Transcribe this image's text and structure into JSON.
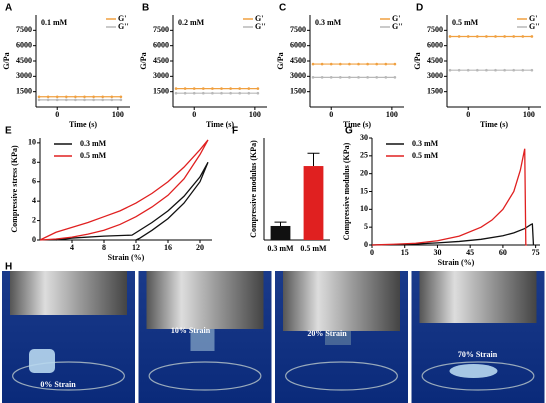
{
  "chart_data": [
    {
      "type": "line",
      "label": "A",
      "title": "0.1 mM",
      "xlabel": "Time (s)",
      "ylabel": "G/Pa",
      "markers": true,
      "legend": "top-right",
      "x": [
        -30,
        -15,
        0,
        15,
        30,
        45,
        60,
        75,
        90,
        105
      ],
      "xlim": [
        -35,
        120
      ],
      "xticks": [
        0,
        100
      ],
      "ylim": [
        0,
        9000
      ],
      "yticks": [
        1500,
        3000,
        4500,
        6000,
        7500
      ],
      "series": [
        {
          "name": "G'",
          "color": "#f0a040",
          "values": [
            1000,
            1000,
            1000,
            1000,
            1000,
            1000,
            1000,
            1000,
            1000,
            1000
          ]
        },
        {
          "name": "G''",
          "color": "#b8b8b8",
          "values": [
            700,
            700,
            700,
            700,
            700,
            700,
            700,
            700,
            700,
            700
          ]
        }
      ]
    },
    {
      "type": "line",
      "label": "B",
      "title": "0.2 mM",
      "xlabel": "Time (s)",
      "ylabel": "G/Pa",
      "markers": true,
      "legend": "top-right",
      "x": [
        -30,
        -15,
        0,
        15,
        30,
        45,
        60,
        75,
        90,
        105
      ],
      "xlim": [
        -35,
        120
      ],
      "xticks": [
        0,
        100
      ],
      "ylim": [
        0,
        9000
      ],
      "yticks": [
        1500,
        3000,
        4500,
        6000,
        7500
      ],
      "series": [
        {
          "name": "G'",
          "color": "#f0a040",
          "values": [
            1800,
            1800,
            1800,
            1800,
            1800,
            1800,
            1800,
            1800,
            1800,
            1800
          ]
        },
        {
          "name": "G''",
          "color": "#b8b8b8",
          "values": [
            1350,
            1350,
            1350,
            1350,
            1350,
            1350,
            1350,
            1350,
            1350,
            1350
          ]
        }
      ]
    },
    {
      "type": "line",
      "label": "C",
      "title": "0.3 mM",
      "xlabel": "Time (s)",
      "ylabel": "G/Pa",
      "markers": true,
      "legend": "top-right",
      "x": [
        -30,
        -15,
        0,
        15,
        30,
        45,
        60,
        75,
        90,
        105
      ],
      "xlim": [
        -35,
        120
      ],
      "xticks": [
        0,
        100
      ],
      "ylim": [
        0,
        9000
      ],
      "yticks": [
        1500,
        3000,
        4500,
        6000,
        7500
      ],
      "series": [
        {
          "name": "G'",
          "color": "#f0a040",
          "values": [
            4200,
            4200,
            4200,
            4200,
            4200,
            4200,
            4200,
            4200,
            4200,
            4200
          ]
        },
        {
          "name": "G''",
          "color": "#b8b8b8",
          "values": [
            2900,
            2900,
            2900,
            2900,
            2900,
            2900,
            2900,
            2900,
            2900,
            2900
          ]
        }
      ]
    },
    {
      "type": "line",
      "label": "D",
      "title": "0.5 mM",
      "xlabel": "Time (s)",
      "ylabel": "G/Pa",
      "markers": true,
      "legend": "top-right",
      "x": [
        -30,
        -15,
        0,
        15,
        30,
        45,
        60,
        75,
        90,
        105
      ],
      "xlim": [
        -35,
        120
      ],
      "xticks": [
        0,
        100
      ],
      "ylim": [
        0,
        9000
      ],
      "yticks": [
        1500,
        3000,
        4500,
        6000,
        7500
      ],
      "series": [
        {
          "name": "G'",
          "color": "#f0a040",
          "values": [
            6900,
            6900,
            6900,
            6900,
            6900,
            6900,
            6900,
            6900,
            6900,
            6900
          ]
        },
        {
          "name": "G''",
          "color": "#b8b8b8",
          "values": [
            3600,
            3600,
            3600,
            3600,
            3600,
            3600,
            3600,
            3600,
            3600,
            3600
          ]
        }
      ]
    },
    {
      "type": "line",
      "label": "E",
      "xlabel": "Strain (%)",
      "ylabel": "Compressive stress (KPa)",
      "markers": false,
      "legend": "top-left",
      "xlim": [
        0,
        21.5
      ],
      "xticks": [
        4,
        8,
        12,
        16,
        20
      ],
      "ylim": [
        0,
        10.5
      ],
      "yticks": [
        0,
        2,
        4,
        6,
        8,
        10
      ],
      "series": [
        {
          "name": "0.3 mM",
          "color": "#111111",
          "x": [
            2,
            4,
            8,
            11.5,
            14,
            16,
            18,
            20,
            21,
            20,
            18,
            16,
            14,
            12.5,
            12
          ],
          "values": [
            0,
            0.2,
            0.4,
            0.5,
            1.8,
            3,
            4.5,
            6.5,
            8,
            6,
            3.8,
            2.2,
            1,
            0.2,
            0
          ]
        },
        {
          "name": "0.5 mM",
          "color": "#e02020",
          "x": [
            0,
            2,
            4,
            6,
            8,
            10,
            12,
            14,
            16,
            18,
            20,
            21,
            20,
            18,
            16,
            14,
            12,
            10,
            8,
            6,
            4,
            2,
            0
          ],
          "values": [
            0,
            0.8,
            1.3,
            1.8,
            2.4,
            3,
            3.8,
            4.8,
            6,
            7.5,
            9.3,
            10.3,
            8.8,
            6.3,
            4.6,
            3.4,
            2.4,
            1.6,
            1,
            0.6,
            0.3,
            0.1,
            0
          ]
        }
      ]
    },
    {
      "type": "bar",
      "label": "F",
      "ylabel": "Compressive modulus (KPa)",
      "categories": [
        "0.3 mM",
        "0.5 mM"
      ],
      "values": [
        11,
        58
      ],
      "errors": [
        3,
        10
      ],
      "colors": [
        "#111111",
        "#e02020"
      ],
      "ylim": [
        0,
        80
      ]
    },
    {
      "type": "line",
      "label": "G",
      "xlabel": "Strain (%)",
      "ylabel": "Compressive modulus (KPa)",
      "markers": false,
      "legend": "top-left",
      "xlim": [
        0,
        77
      ],
      "xticks": [
        0,
        15,
        30,
        45,
        60,
        75
      ],
      "ylim": [
        0,
        30
      ],
      "yticks": [
        0,
        5,
        10,
        15,
        20,
        25,
        30
      ],
      "series": [
        {
          "name": "0.3 mM",
          "color": "#111111",
          "x": [
            0,
            10,
            20,
            30,
            40,
            50,
            60,
            65,
            70,
            73,
            73.5,
            74
          ],
          "values": [
            0,
            0.1,
            0.3,
            0.6,
            1,
            1.6,
            2.6,
            3.4,
            4.6,
            5.8,
            5.9,
            0
          ]
        },
        {
          "name": "0.5 mM",
          "color": "#e02020",
          "x": [
            0,
            10,
            20,
            30,
            40,
            50,
            55,
            60,
            65,
            68,
            70,
            70.5,
            71
          ],
          "values": [
            0,
            0.2,
            0.5,
            1.2,
            2.5,
            5,
            7,
            10,
            15,
            21,
            27,
            0,
            0
          ]
        }
      ]
    }
  ],
  "photos": {
    "label": "H",
    "captions": [
      "0% Strain",
      "10% Strain",
      "20% Strain",
      "70% Strain"
    ]
  }
}
